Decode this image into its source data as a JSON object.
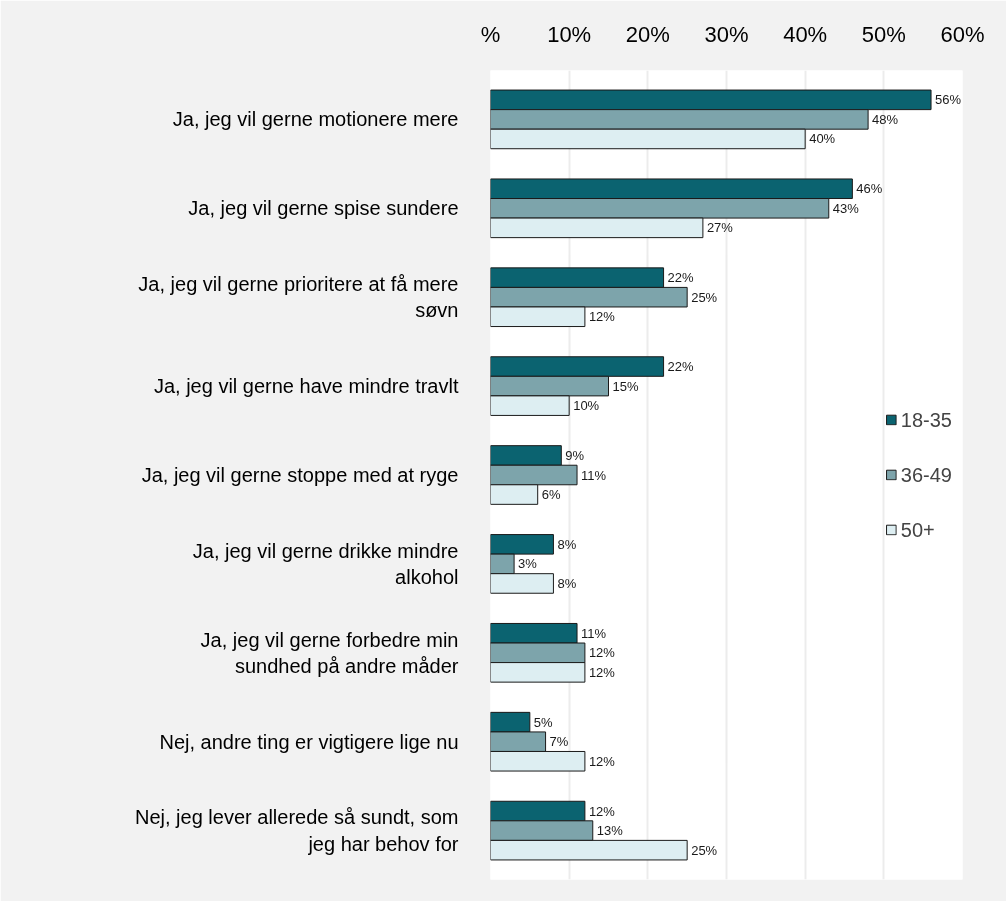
{
  "chart_data": {
    "type": "bar",
    "orientation": "horizontal",
    "categories": [
      "Ja, jeg vil gerne motionere mere",
      "Ja, jeg vil gerne spise sundere",
      "Ja, jeg vil gerne prioritere at få mere\nsøvn",
      "Ja, jeg vil gerne have mindre travlt",
      "Ja, jeg vil gerne stoppe med at ryge",
      "Ja, jeg vil gerne drikke mindre\nalkohol",
      "Ja, jeg vil gerne forbedre min\nsundhed på andre måder",
      "Nej, andre ting er vigtigere lige nu",
      "Nej, jeg lever allerede så sundt, som\njeg har behov for"
    ],
    "series": [
      {
        "name": "18-35",
        "color": "#0b6370",
        "values": [
          56,
          46,
          22,
          22,
          9,
          8,
          11,
          5,
          12
        ],
        "value_labels": [
          "56%",
          "46%",
          "22%",
          "22%",
          "9%",
          "8%",
          "11%",
          "5%",
          "12%"
        ]
      },
      {
        "name": "36-49",
        "color": "#7da4ab",
        "values": [
          48,
          43,
          25,
          15,
          11,
          3,
          12,
          7,
          13
        ],
        "value_labels": [
          "48%",
          "43%",
          "25%",
          "15%",
          "11%",
          "3%",
          "12%",
          "7%",
          "13%"
        ]
      },
      {
        "name": "50+",
        "color": "#ddeef2",
        "values": [
          40,
          27,
          12,
          10,
          6,
          8,
          12,
          12,
          25
        ],
        "value_labels": [
          "40%",
          "27%",
          "12%",
          "10%",
          "6%",
          "8%",
          "12%",
          "12%",
          "25%"
        ]
      }
    ],
    "xlim": [
      0,
      60
    ],
    "xticks": [
      {
        "value": 0,
        "label": "%"
      },
      {
        "value": 10,
        "label": "10%"
      },
      {
        "value": 20,
        "label": "20%"
      },
      {
        "value": 30,
        "label": "30%"
      },
      {
        "value": 40,
        "label": "40%"
      },
      {
        "value": 50,
        "label": "50%"
      },
      {
        "value": 60,
        "label": "60%"
      }
    ],
    "grid": "x",
    "legend": "right"
  }
}
